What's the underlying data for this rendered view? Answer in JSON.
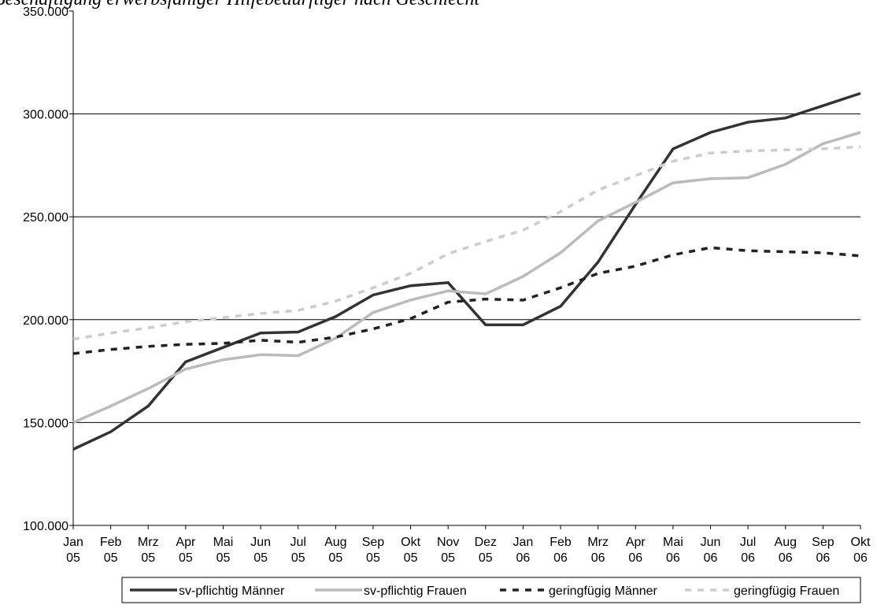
{
  "chart_data": {
    "type": "line",
    "title": "Beschäftigung erwerbsfähiger Hilfebedürftiger nach Geschlecht",
    "categories": [
      "Jan 05",
      "Feb 05",
      "Mrz 05",
      "Apr 05",
      "Mai 05",
      "Jun 05",
      "Jul 05",
      "Aug 05",
      "Sep 05",
      "Okt 05",
      "Nov 05",
      "Dez 05",
      "Jan 06",
      "Feb 06",
      "Mrz 06",
      "Apr 06",
      "Mai 06",
      "Jun 06",
      "Jul 06",
      "Aug 06",
      "Sep 06",
      "Okt 06"
    ],
    "series": [
      {
        "name": "sv-pflichtig Männer",
        "color": "#333333",
        "dashed": false,
        "values": [
          137000,
          145500,
          158000,
          179500,
          186500,
          193500,
          194000,
          201500,
          212000,
          216500,
          218000,
          197500,
          197500,
          206500,
          228000,
          256000,
          283000,
          291000,
          296000,
          298000,
          304000,
          310000
        ]
      },
      {
        "name": "sv-pflichtig Frauen",
        "color": "#bbbbbb",
        "dashed": false,
        "values": [
          150000,
          158000,
          166500,
          176000,
          180500,
          183000,
          182500,
          191000,
          203500,
          209500,
          214000,
          212500,
          221000,
          232500,
          248000,
          257000,
          266500,
          268500,
          269000,
          275500,
          285500,
          291000
        ]
      },
      {
        "name": "geringfügig Männer",
        "color": "#222222",
        "dashed": true,
        "values": [
          183500,
          185500,
          187000,
          188000,
          188500,
          190000,
          189000,
          191500,
          195500,
          200500,
          208500,
          210000,
          209500,
          215500,
          222500,
          226000,
          231500,
          235000,
          233500,
          233000,
          232500,
          231000
        ]
      },
      {
        "name": "geringfügig Frauen",
        "color": "#cccccc",
        "dashed": true,
        "values": [
          190500,
          193500,
          196000,
          199000,
          201000,
          203000,
          204500,
          209000,
          215500,
          222500,
          232000,
          238000,
          243500,
          252500,
          263000,
          270000,
          277000,
          281000,
          282000,
          282500,
          283000,
          284000
        ]
      }
    ],
    "ylim": [
      100000,
      350000
    ],
    "yticks": [
      {
        "value": 100000,
        "label": "100.000"
      },
      {
        "value": 150000,
        "label": "150.000"
      },
      {
        "value": 200000,
        "label": "200.000"
      },
      {
        "value": 250000,
        "label": "250.000"
      },
      {
        "value": 300000,
        "label": "300.000"
      },
      {
        "value": 350000,
        "label": "350.000"
      }
    ],
    "grid": true,
    "legend": "bottom"
  }
}
